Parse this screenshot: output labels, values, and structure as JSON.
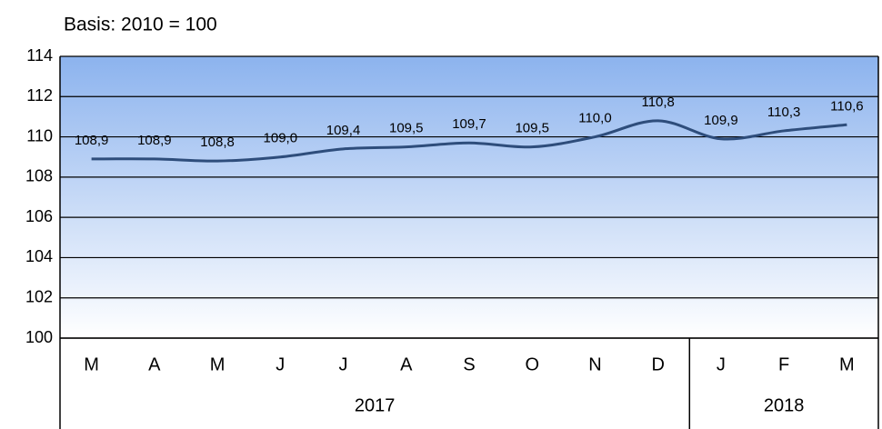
{
  "chart_data": {
    "type": "line",
    "subtitle": "Basis: 2010 = 100",
    "categories": [
      "M",
      "A",
      "M",
      "J",
      "J",
      "A",
      "S",
      "O",
      "N",
      "D",
      "J",
      "F",
      "M"
    ],
    "groups": [
      {
        "label": "2017",
        "span": 10
      },
      {
        "label": "2018",
        "span": 3
      }
    ],
    "values": [
      108.9,
      108.9,
      108.8,
      109.0,
      109.4,
      109.5,
      109.7,
      109.5,
      110.0,
      110.8,
      109.9,
      110.3,
      110.6
    ],
    "value_labels": [
      "108,9",
      "108,9",
      "108,8",
      "109,0",
      "109,4",
      "109,5",
      "109,7",
      "109,5",
      "110,0",
      "110,8",
      "109,9",
      "110,3",
      "110,6"
    ],
    "color": "#2e4d7b",
    "ylim": [
      100,
      114
    ],
    "yticks": [
      100,
      102,
      104,
      106,
      108,
      110,
      112,
      114
    ],
    "grid": true
  }
}
